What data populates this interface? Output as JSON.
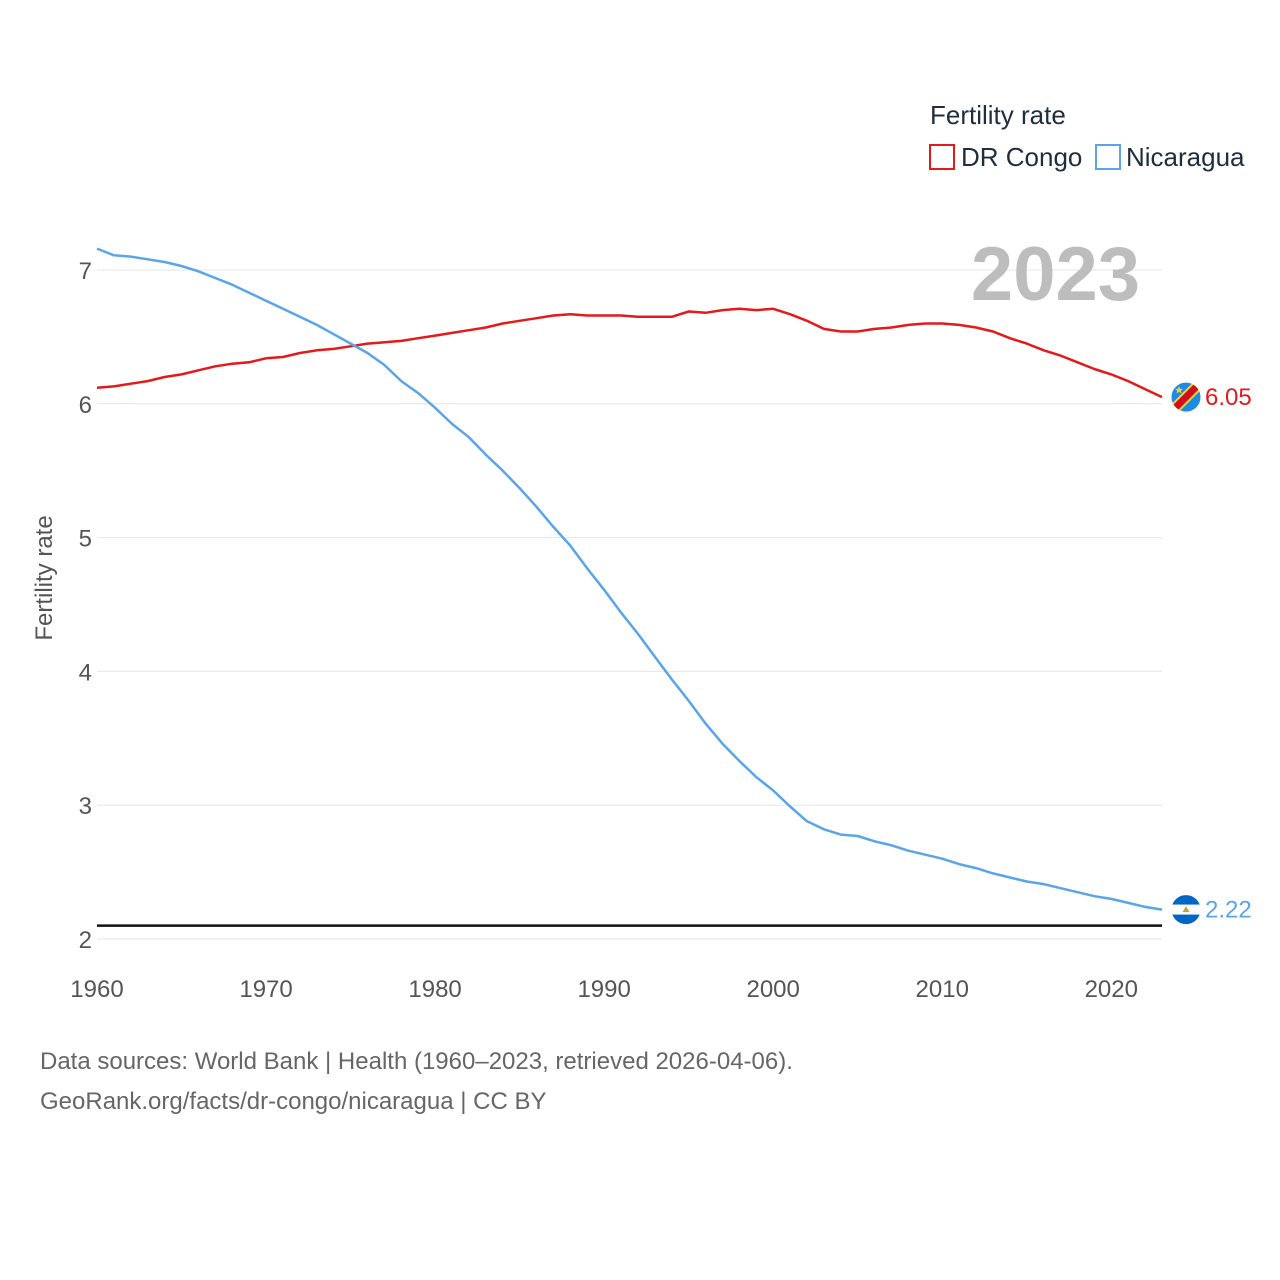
{
  "chart_data": {
    "type": "line",
    "title": "",
    "xlabel": "",
    "ylabel": "Fertility rate",
    "xlim": [
      1960,
      2023
    ],
    "ylim": [
      2,
      7.2
    ],
    "xticks": [
      1960,
      1970,
      1980,
      1990,
      2000,
      2010,
      2020
    ],
    "yticks": [
      2,
      3,
      4,
      5,
      6,
      7
    ],
    "year_display": "2023",
    "reference_line": 2.1,
    "legend": {
      "title": "Fertility rate",
      "position": "top-right"
    },
    "x": [
      1960,
      1961,
      1962,
      1963,
      1964,
      1965,
      1966,
      1967,
      1968,
      1969,
      1970,
      1971,
      1972,
      1973,
      1974,
      1975,
      1976,
      1977,
      1978,
      1979,
      1980,
      1981,
      1982,
      1983,
      1984,
      1985,
      1986,
      1987,
      1988,
      1989,
      1990,
      1991,
      1992,
      1993,
      1994,
      1995,
      1996,
      1997,
      1998,
      1999,
      2000,
      2001,
      2002,
      2003,
      2004,
      2005,
      2006,
      2007,
      2008,
      2009,
      2010,
      2011,
      2012,
      2013,
      2014,
      2015,
      2016,
      2017,
      2018,
      2019,
      2020,
      2021,
      2022,
      2023
    ],
    "series": [
      {
        "name": "DR Congo",
        "color": "#e31a1c",
        "end_label": "6.05",
        "flag": "dr-congo-flag-icon",
        "values": [
          6.12,
          6.13,
          6.15,
          6.17,
          6.2,
          6.22,
          6.25,
          6.28,
          6.3,
          6.31,
          6.34,
          6.35,
          6.38,
          6.4,
          6.41,
          6.43,
          6.45,
          6.46,
          6.47,
          6.49,
          6.51,
          6.53,
          6.55,
          6.57,
          6.6,
          6.62,
          6.64,
          6.66,
          6.67,
          6.66,
          6.66,
          6.66,
          6.65,
          6.65,
          6.65,
          6.69,
          6.68,
          6.7,
          6.71,
          6.7,
          6.71,
          6.67,
          6.62,
          6.56,
          6.54,
          6.54,
          6.56,
          6.57,
          6.59,
          6.6,
          6.6,
          6.59,
          6.57,
          6.54,
          6.49,
          6.45,
          6.4,
          6.36,
          6.31,
          6.26,
          6.22,
          6.17,
          6.11,
          6.05
        ]
      },
      {
        "name": "Nicaragua",
        "color": "#5aa5e8",
        "end_label": "2.22",
        "flag": "nicaragua-flag-icon",
        "values": [
          7.16,
          7.11,
          7.1,
          7.08,
          7.06,
          7.03,
          6.99,
          6.94,
          6.89,
          6.83,
          6.77,
          6.71,
          6.65,
          6.59,
          6.52,
          6.45,
          6.38,
          6.29,
          6.17,
          6.08,
          5.97,
          5.85,
          5.75,
          5.62,
          5.5,
          5.37,
          5.23,
          5.08,
          4.94,
          4.77,
          4.61,
          4.44,
          4.28,
          4.11,
          3.94,
          3.78,
          3.61,
          3.46,
          3.33,
          3.21,
          3.11,
          2.99,
          2.88,
          2.82,
          2.78,
          2.77,
          2.73,
          2.7,
          2.66,
          2.63,
          2.6,
          2.56,
          2.53,
          2.49,
          2.46,
          2.43,
          2.41,
          2.38,
          2.35,
          2.32,
          2.3,
          2.27,
          2.24,
          2.22
        ]
      }
    ]
  },
  "footer": {
    "line1": "Data sources: World Bank | Health (1960–2023, retrieved 2026-04-06).",
    "line2": "GeoRank.org/facts/dr-congo/nicaragua | CC BY"
  }
}
